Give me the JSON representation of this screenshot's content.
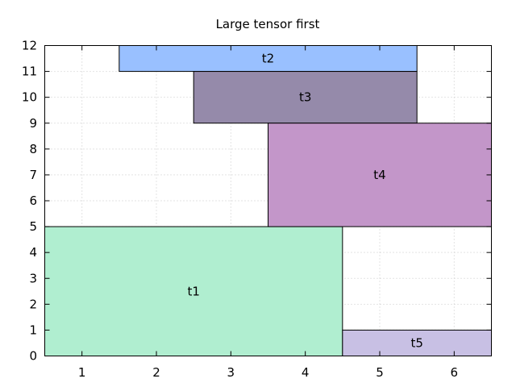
{
  "chart_data": {
    "type": "bar",
    "title": "Large tensor first",
    "xlabel": "",
    "ylabel": "",
    "xlim": [
      0.5,
      6.5
    ],
    "ylim": [
      0,
      12
    ],
    "xticks": [
      1,
      2,
      3,
      4,
      5,
      6
    ],
    "yticks": [
      0,
      1,
      2,
      3,
      4,
      5,
      6,
      7,
      8,
      9,
      10,
      11,
      12
    ],
    "grid": true,
    "tensors": [
      {
        "label": "t1",
        "x_start": 0.5,
        "x_end": 4.5,
        "y_start": 0,
        "y_end": 5,
        "color": "#b0eed0"
      },
      {
        "label": "t2",
        "x_start": 1.5,
        "x_end": 5.5,
        "y_start": 11,
        "y_end": 12,
        "color": "#99c0ff"
      },
      {
        "label": "t3",
        "x_start": 2.5,
        "x_end": 5.5,
        "y_start": 9,
        "y_end": 11,
        "color": "#958aaa"
      },
      {
        "label": "t4",
        "x_start": 3.5,
        "x_end": 6.5,
        "y_start": 5,
        "y_end": 9,
        "color": "#c396c9"
      },
      {
        "label": "t5",
        "x_start": 4.5,
        "x_end": 6.5,
        "y_start": 0,
        "y_end": 1,
        "color": "#c8c0e4"
      }
    ]
  }
}
